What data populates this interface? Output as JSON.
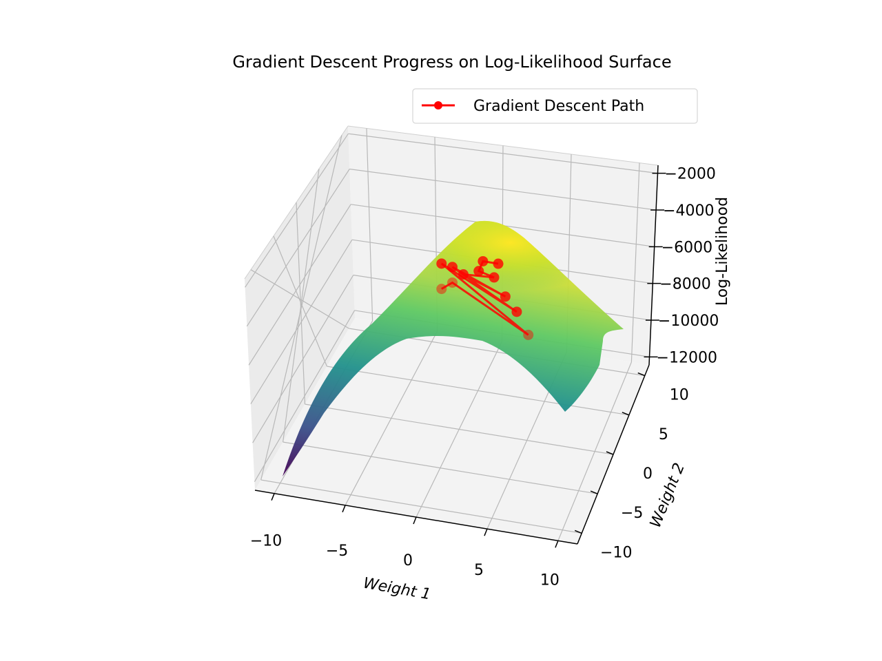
{
  "chart_data": {
    "type": "surface3d",
    "title": "Gradient Descent Progress on Log-Likelihood Surface",
    "xlabel": "Weight 1",
    "ylabel": "Weight 2",
    "zlabel": "Log-Likelihood",
    "xticks": [
      "−10",
      "−5",
      "0",
      "5",
      "10"
    ],
    "yticks": [
      "−10",
      "−5",
      "0",
      "5",
      "10"
    ],
    "zticks": [
      "−12000",
      "−10000",
      "−8000",
      "−6000",
      "−4000",
      "−2000"
    ],
    "xlim": [
      -10,
      10
    ],
    "ylim": [
      -10,
      10
    ],
    "zlim": [
      -12000,
      -2000
    ],
    "grid": true,
    "colormap": "viridis",
    "legend": {
      "placement": "upper-right",
      "entries": [
        "Gradient Descent Path"
      ]
    },
    "series": [
      {
        "name": "Gradient Descent Path",
        "color": "#ff0000",
        "marker": "circle",
        "points": [
          {
            "w1": -2,
            "w2": 3,
            "ll": -6400
          },
          {
            "w1": -1,
            "w2": 2,
            "ll": -5500
          },
          {
            "w1": 5,
            "w2": -2,
            "ll": -5600
          },
          {
            "w1": -2,
            "w2": 3,
            "ll": -5100
          },
          {
            "w1": 4,
            "w2": -1,
            "ll": -5000
          },
          {
            "w1": -1,
            "w2": 2,
            "ll": -4700
          },
          {
            "w1": 3,
            "w2": 0,
            "ll": -4800
          },
          {
            "w1": 0,
            "w2": 1,
            "ll": -4500
          },
          {
            "w1": 2,
            "w2": 1,
            "ll": -4400
          },
          {
            "w1": 1,
            "w2": 1,
            "ll": -4200
          },
          {
            "w1": 1,
            "w2": 2,
            "ll": -4150
          },
          {
            "w1": 2,
            "w2": 2,
            "ll": -4150
          }
        ]
      }
    ]
  }
}
